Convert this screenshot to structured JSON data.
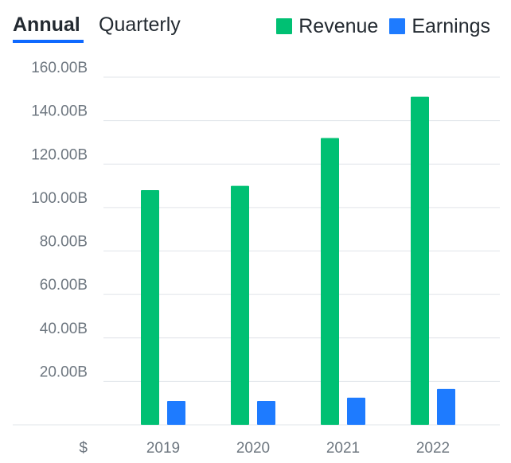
{
  "tabs": {
    "annual": "Annual",
    "quarterly": "Quarterly",
    "active": "annual"
  },
  "colors": {
    "revenue": "#00c073",
    "earnings": "#1e7bff",
    "accent": "#0f69ff",
    "grid": "#e0e4e9",
    "tick_text": "#6e7780"
  },
  "chart_data": {
    "type": "bar",
    "categories": [
      "2019",
      "2020",
      "2021",
      "2022"
    ],
    "series": [
      {
        "name": "Revenue",
        "color": "#00c073",
        "values": [
          108.0,
          110.0,
          132.0,
          151.0
        ]
      },
      {
        "name": "Earnings",
        "color": "#1e7bff",
        "values": [
          11.0,
          11.0,
          12.5,
          16.5
        ]
      }
    ],
    "ylim": [
      0,
      160
    ],
    "yticks": [
      20,
      40,
      60,
      80,
      100,
      120,
      140,
      160
    ],
    "ytick_labels": [
      "20.00B",
      "40.00B",
      "60.00B",
      "80.00B",
      "100.00B",
      "120.00B",
      "140.00B",
      "160.00B"
    ],
    "unit_label": "$",
    "grid": true,
    "legend": "top-right"
  }
}
